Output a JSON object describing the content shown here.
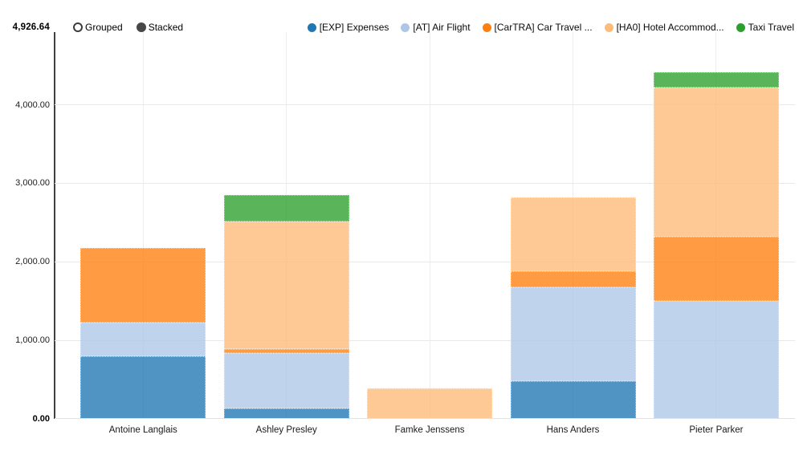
{
  "header": {
    "axis_max_label": "4,926.64",
    "controls": [
      {
        "label": "Grouped",
        "selected": false
      },
      {
        "label": "Stacked",
        "selected": true
      }
    ]
  },
  "legend": [
    {
      "label": "[EXP] Expenses",
      "color": "#1f77b4"
    },
    {
      "label": "[AT] Air Flight",
      "color": "#aec7e8"
    },
    {
      "label": "[CarTRA] Car Travel ...",
      "color": "#ff7f0e"
    },
    {
      "label": "[HA0] Hotel Accommod...",
      "color": "#ffbb78"
    },
    {
      "label": "Taxi Travel",
      "color": "#2ca02c"
    }
  ],
  "chart_data": {
    "type": "bar",
    "mode": "stacked",
    "title": "",
    "xlabel": "",
    "ylabel": "",
    "ylim": [
      0,
      4926.64
    ],
    "grid": true,
    "legend_position": "top-right",
    "categories": [
      "Antoine Langlais",
      "Ashley Presley",
      "Famke Jenssens",
      "Hans Anders",
      "Pieter Parker"
    ],
    "series": [
      {
        "name": "[EXP] Expenses",
        "color": "#1f77b4",
        "values": [
          795,
          128,
          0,
          478,
          0
        ]
      },
      {
        "name": "[AT] Air Flight",
        "color": "#aec7e8",
        "values": [
          432,
          707,
          0,
          1200,
          1505
        ]
      },
      {
        "name": "[CarTRA] Car Travel ...",
        "color": "#ff7f0e",
        "values": [
          947,
          52,
          0,
          199,
          812
        ]
      },
      {
        "name": "[HA0] Hotel Accommod...",
        "color": "#ffbb78",
        "values": [
          0,
          1632,
          387,
          946,
          1902
        ]
      },
      {
        "name": "Taxi Travel",
        "color": "#2ca02c",
        "values": [
          0,
          332,
          0,
          0,
          192
        ]
      }
    ],
    "totals": [
      2174,
      2851,
      387,
      2823,
      4411
    ],
    "yticks": [
      {
        "label": "0.00",
        "value": 0,
        "bold": true,
        "grid": false
      },
      {
        "label": "1,000.00",
        "value": 1000,
        "bold": false,
        "grid": true
      },
      {
        "label": "2,000.00",
        "value": 2000,
        "bold": false,
        "grid": true
      },
      {
        "label": "3,000.00",
        "value": 3000,
        "bold": false,
        "grid": true
      },
      {
        "label": "4,000.00",
        "value": 4000,
        "bold": false,
        "grid": true
      }
    ],
    "ymax_label": "4,926.64"
  }
}
